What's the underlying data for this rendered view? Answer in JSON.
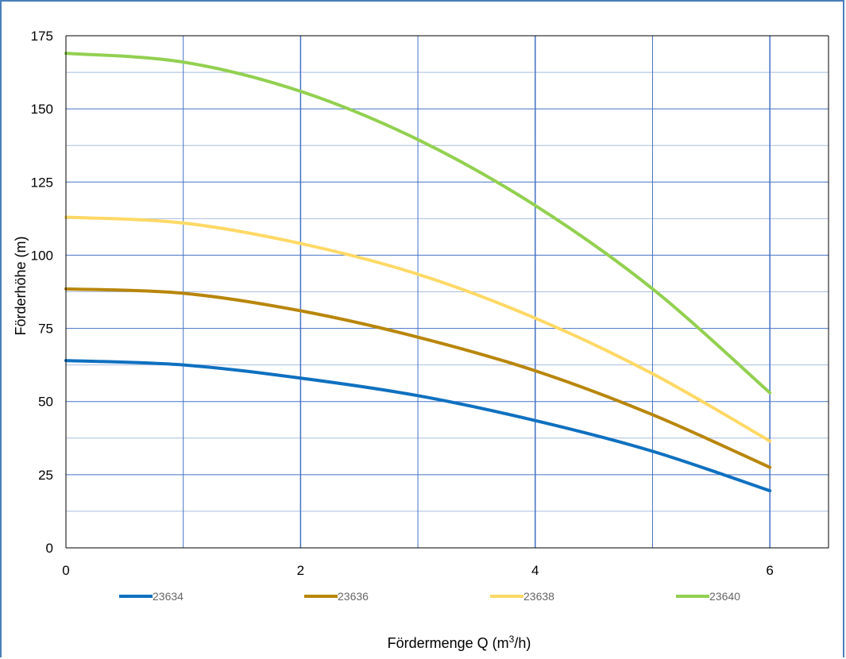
{
  "chart_data": {
    "type": "line",
    "title": "",
    "xlabel_main": "Fördermenge Q (m",
    "xlabel_sup": "3",
    "xlabel_end": "/h)",
    "ylabel": "Förderhöhe (m)",
    "xlim": [
      0,
      6.5
    ],
    "ylim": [
      0,
      175
    ],
    "x_ticks": [
      0,
      2,
      4,
      6
    ],
    "y_ticks": [
      0,
      25,
      50,
      75,
      100,
      125,
      150,
      175
    ],
    "x_minor_grid": [
      1,
      3,
      5
    ],
    "y_minor_grid": [
      12.5,
      37.5,
      62.5,
      87.5,
      112.5,
      137.5,
      162.5
    ],
    "grid": true,
    "legend_position": "bottom",
    "x": [
      0,
      1,
      2,
      3,
      4,
      5,
      6
    ],
    "series": [
      {
        "name": "23634",
        "color": "#0f70c0",
        "values": [
          64,
          62.5,
          58,
          52,
          43.5,
          33,
          19.5
        ]
      },
      {
        "name": "23636",
        "color": "#b8860b",
        "values": [
          88.5,
          87,
          81,
          72,
          60.5,
          45.5,
          27.5
        ]
      },
      {
        "name": "23638",
        "color": "#ffd966",
        "values": [
          113,
          111,
          104,
          93.5,
          78.5,
          59.5,
          36.5
        ]
      },
      {
        "name": "23640",
        "color": "#92d050",
        "values": [
          169,
          166,
          156,
          139.5,
          117,
          88.5,
          53
        ]
      }
    ]
  }
}
